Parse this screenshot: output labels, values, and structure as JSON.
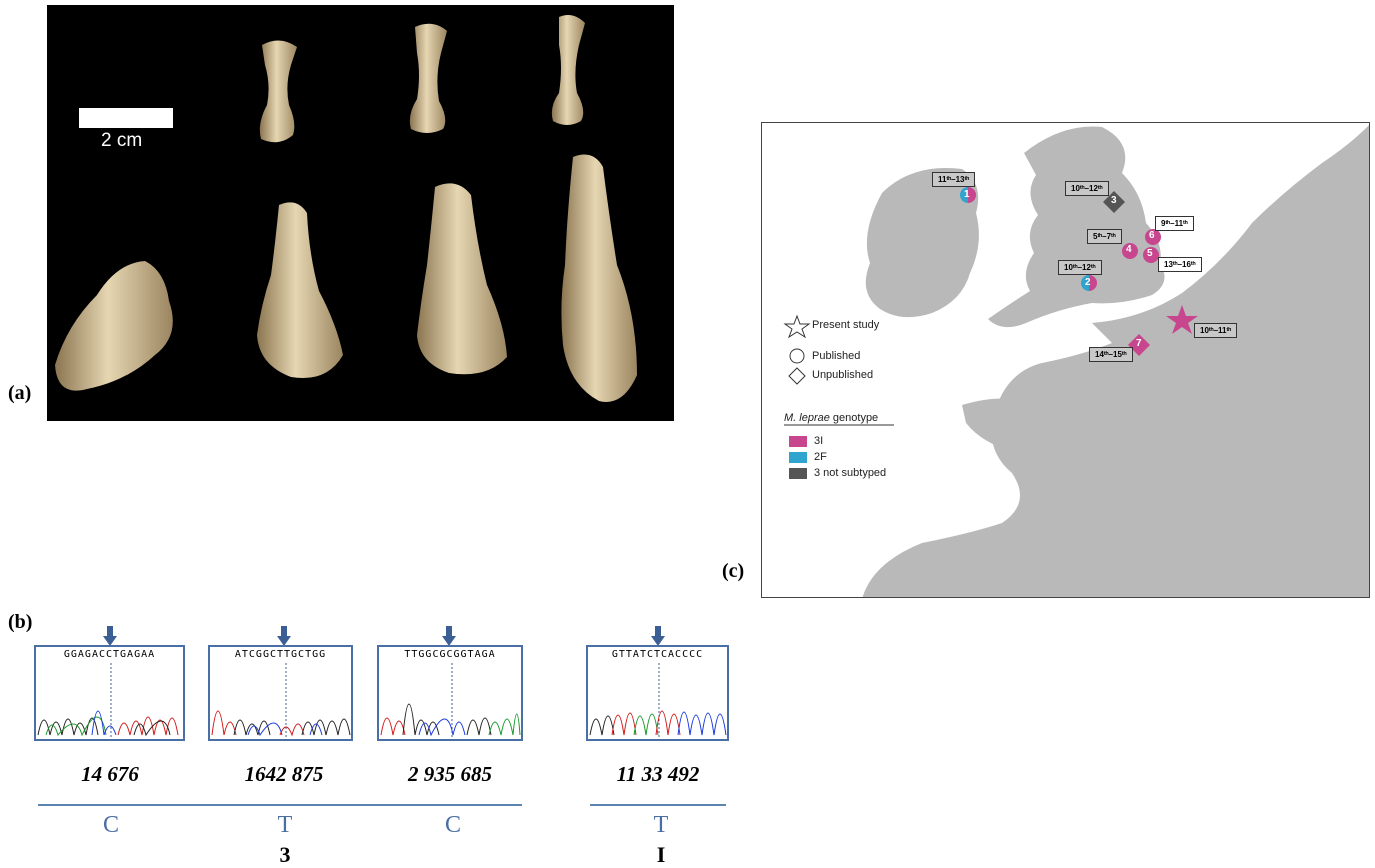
{
  "panels": {
    "a": "(a)",
    "b": "(b)",
    "c": "(c)"
  },
  "photo": {
    "scale_bar_label": "2 cm"
  },
  "map": {
    "legend": {
      "present_study": "Present study",
      "published": "Published",
      "unpublished": "Unpublished",
      "genotype_title_italic": "M. leprae",
      "genotype_title_rest": " genotype",
      "genotypes": [
        {
          "label": "3I",
          "color": "#c7468e"
        },
        {
          "label": "2F",
          "color": "#2ea4cf"
        },
        {
          "label": "3 not subtyped",
          "color": "#555555"
        }
      ]
    },
    "sites": [
      {
        "number": "1",
        "date": "11ᵗʰ–13ᵗʰ"
      },
      {
        "number": "2",
        "date": "10ᵗʰ–12ᵗʰ"
      },
      {
        "number": "3",
        "date": "10ᵗʰ–12ᵗʰ"
      },
      {
        "number": "4",
        "date": "5ᵗʰ–7ᵗʰ"
      },
      {
        "number": "5",
        "date": "13ᵗʰ–16ᵗʰ"
      },
      {
        "number": "6",
        "date": "9ᵗʰ–11ᵗʰ"
      },
      {
        "number": "7",
        "date": "14ᵗʰ–15ᵗʰ"
      }
    ],
    "present_site_date": "10ᵗʰ–11ᵗʰ"
  },
  "chromatograms": [
    {
      "sequence": "GGAGACCTGAGAA",
      "position": "14 676",
      "allele": "C"
    },
    {
      "sequence": "ATCGGCTTGCTGG",
      "position": "1642 875",
      "allele": "T"
    },
    {
      "sequence": "TTGGCGCGGTAGA",
      "position": "2 935 685",
      "allele": "C"
    },
    {
      "sequence": "GTTATCTCACCCC",
      "position": "11 33 492",
      "allele": "T"
    }
  ],
  "genotype_labels": [
    "3",
    "I"
  ]
}
